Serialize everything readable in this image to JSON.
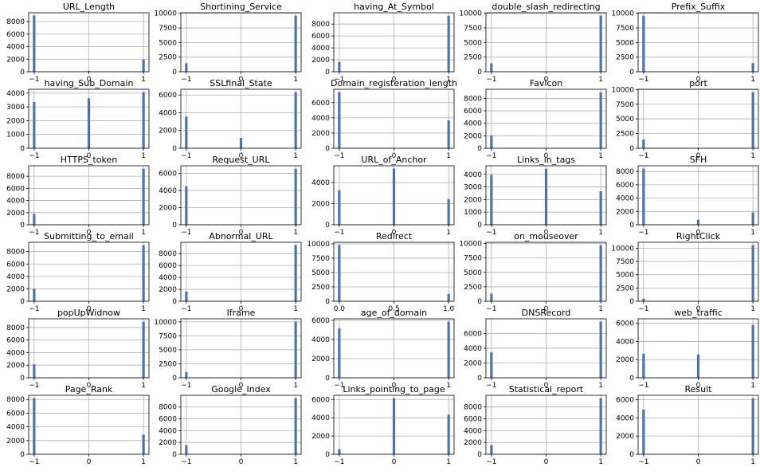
{
  "bar_color": "#4c72b0",
  "chart_data": [
    {
      "type": "bar",
      "title": "URL_Length",
      "x": [
        -1,
        0,
        1
      ],
      "values": [
        8960,
        135,
        1960
      ],
      "xlim": [
        -1.1,
        1.1
      ],
      "xticks": [
        -1,
        0,
        1
      ],
      "xtick_labels": [
        "−1",
        "0",
        "1"
      ],
      "ylim": [
        0,
        9400
      ],
      "yticks": [
        0,
        2000,
        4000,
        6000,
        8000
      ],
      "ytick_labels": [
        "0",
        "2000",
        "4000",
        "6000",
        "8000"
      ],
      "grid": true
    },
    {
      "type": "bar",
      "title": "Shortining_Service",
      "x": [
        -1,
        1
      ],
      "values": [
        1444,
        9611
      ],
      "xlim": [
        -1.1,
        1.1
      ],
      "xticks": [
        -1,
        0,
        1
      ],
      "xtick_labels": [
        "−1",
        "0",
        "1"
      ],
      "ylim": [
        0,
        10100
      ],
      "yticks": [
        0,
        2500,
        5000,
        7500,
        10000
      ],
      "ytick_labels": [
        "0",
        "2500",
        "5000",
        "7500",
        "10000"
      ],
      "grid": true
    },
    {
      "type": "bar",
      "title": "having_At_Symbol",
      "x": [
        -1,
        1
      ],
      "values": [
        1655,
        9400
      ],
      "xlim": [
        -1.1,
        1.1
      ],
      "xticks": [
        -1,
        0,
        1
      ],
      "xtick_labels": [
        "−1",
        "0",
        "1"
      ],
      "ylim": [
        0,
        9900
      ],
      "yticks": [
        0,
        2000,
        4000,
        6000,
        8000
      ],
      "ytick_labels": [
        "0",
        "2000",
        "4000",
        "6000",
        "8000"
      ],
      "grid": true
    },
    {
      "type": "bar",
      "title": "double_slash_redirecting",
      "x": [
        -1,
        1
      ],
      "values": [
        1429,
        9626
      ],
      "xlim": [
        -1.1,
        1.1
      ],
      "xticks": [
        -1,
        0,
        1
      ],
      "xtick_labels": [
        "−1",
        "0",
        "1"
      ],
      "ylim": [
        0,
        10100
      ],
      "yticks": [
        0,
        2500,
        5000,
        7500,
        10000
      ],
      "ytick_labels": [
        "0",
        "2500",
        "5000",
        "7500",
        "10000"
      ],
      "grid": true
    },
    {
      "type": "bar",
      "title": "Prefix_Suffix",
      "x": [
        -1,
        1
      ],
      "values": [
        9590,
        1465
      ],
      "xlim": [
        -1.1,
        1.1
      ],
      "xticks": [
        -1,
        0,
        1
      ],
      "xtick_labels": [
        "−1",
        "0",
        "1"
      ],
      "ylim": [
        0,
        10100
      ],
      "yticks": [
        0,
        2500,
        5000,
        7500,
        10000
      ],
      "ytick_labels": [
        "0",
        "2500",
        "5000",
        "7500",
        "10000"
      ],
      "grid": true
    },
    {
      "type": "bar",
      "title": "having_Sub_Domain",
      "x": [
        -1,
        0,
        1
      ],
      "values": [
        3363,
        3622,
        4070
      ],
      "xlim": [
        -1.1,
        1.1
      ],
      "xticks": [
        -1,
        0,
        1
      ],
      "xtick_labels": [
        "−1",
        "0",
        "1"
      ],
      "ylim": [
        0,
        4280
      ],
      "yticks": [
        0,
        1000,
        2000,
        3000,
        4000
      ],
      "ytick_labels": [
        "0",
        "1000",
        "2000",
        "3000",
        "4000"
      ],
      "grid": true
    },
    {
      "type": "bar",
      "title": "SSLfinal_State",
      "x": [
        -1,
        0,
        1
      ],
      "values": [
        3557,
        1167,
        6331
      ],
      "xlim": [
        -1.1,
        1.1
      ],
      "xticks": [
        -1,
        0,
        1
      ],
      "xtick_labels": [
        "−1",
        "0",
        "1"
      ],
      "ylim": [
        0,
        6650
      ],
      "yticks": [
        0,
        2000,
        4000,
        6000
      ],
      "ytick_labels": [
        "0",
        "2000",
        "4000",
        "6000"
      ],
      "grid": true
    },
    {
      "type": "bar",
      "title": "Domain_registeration_length",
      "x": [
        -1,
        1
      ],
      "values": [
        7389,
        3666
      ],
      "xlim": [
        -1.1,
        1.1
      ],
      "xticks": [
        -1,
        0,
        1
      ],
      "xtick_labels": [
        "−1",
        "0",
        "1"
      ],
      "ylim": [
        0,
        7760
      ],
      "yticks": [
        0,
        2000,
        4000,
        6000
      ],
      "ytick_labels": [
        "0",
        "2000",
        "4000",
        "6000"
      ],
      "grid": true
    },
    {
      "type": "bar",
      "title": "Favicon",
      "x": [
        -1,
        1
      ],
      "values": [
        2053,
        9002
      ],
      "xlim": [
        -1.1,
        1.1
      ],
      "xticks": [
        -1,
        0,
        1
      ],
      "xtick_labels": [
        "−1",
        "0",
        "1"
      ],
      "ylim": [
        0,
        9460
      ],
      "yticks": [
        0,
        2000,
        4000,
        6000,
        8000
      ],
      "ytick_labels": [
        "0",
        "2000",
        "4000",
        "6000",
        "8000"
      ],
      "grid": true
    },
    {
      "type": "bar",
      "title": "port",
      "x": [
        -1,
        1
      ],
      "values": [
        1502,
        9553
      ],
      "xlim": [
        -1.1,
        1.1
      ],
      "xticks": [
        -1,
        0,
        1
      ],
      "xtick_labels": [
        "−1",
        "0",
        "1"
      ],
      "ylim": [
        0,
        10050
      ],
      "yticks": [
        0,
        2500,
        5000,
        7500,
        10000
      ],
      "ytick_labels": [
        "0",
        "2500",
        "5000",
        "7500",
        "10000"
      ],
      "grid": true
    },
    {
      "type": "bar",
      "title": "HTTPS_token",
      "x": [
        -1,
        1
      ],
      "values": [
        1796,
        9259
      ],
      "xlim": [
        -1.1,
        1.1
      ],
      "xticks": [
        -1,
        0,
        1
      ],
      "xtick_labels": [
        "−1",
        "0",
        "1"
      ],
      "ylim": [
        0,
        9730
      ],
      "yticks": [
        0,
        2000,
        4000,
        6000,
        8000
      ],
      "ytick_labels": [
        "0",
        "2000",
        "4000",
        "6000",
        "8000"
      ],
      "grid": true
    },
    {
      "type": "bar",
      "title": "Request_URL",
      "x": [
        -1,
        1
      ],
      "values": [
        4495,
        6560
      ],
      "xlim": [
        -1.1,
        1.1
      ],
      "xticks": [
        -1,
        0,
        1
      ],
      "xtick_labels": [
        "−1",
        "0",
        "1"
      ],
      "ylim": [
        0,
        6890
      ],
      "yticks": [
        0,
        2000,
        4000,
        6000
      ],
      "ytick_labels": [
        "0",
        "2000",
        "4000",
        "6000"
      ],
      "grid": true
    },
    {
      "type": "bar",
      "title": "URL_of_Anchor",
      "x": [
        -1,
        0,
        1
      ],
      "values": [
        3282,
        5337,
        2436
      ],
      "xlim": [
        -1.1,
        1.1
      ],
      "xticks": [
        -1,
        0,
        1
      ],
      "xtick_labels": [
        "−1",
        "0",
        "1"
      ],
      "ylim": [
        0,
        5600
      ],
      "yticks": [
        0,
        2000,
        4000
      ],
      "ytick_labels": [
        "0",
        "2000",
        "4000"
      ],
      "grid": true
    },
    {
      "type": "bar",
      "title": "Links_in_tags",
      "x": [
        -1,
        0,
        1
      ],
      "values": [
        3956,
        4449,
        2650
      ],
      "xlim": [
        -1.1,
        1.1
      ],
      "xticks": [
        -1,
        0,
        1
      ],
      "xtick_labels": [
        "−1",
        "0",
        "1"
      ],
      "ylim": [
        0,
        4680
      ],
      "yticks": [
        0,
        1000,
        2000,
        3000,
        4000
      ],
      "ytick_labels": [
        "0",
        "1000",
        "2000",
        "3000",
        "4000"
      ],
      "grid": true
    },
    {
      "type": "bar",
      "title": "SFH",
      "x": [
        -1,
        0,
        1
      ],
      "values": [
        8440,
        761,
        1854
      ],
      "xlim": [
        -1.1,
        1.1
      ],
      "xticks": [
        -1,
        0,
        1
      ],
      "xtick_labels": [
        "−1",
        "0",
        "1"
      ],
      "ylim": [
        0,
        8860
      ],
      "yticks": [
        0,
        2000,
        4000,
        6000,
        8000
      ],
      "ytick_labels": [
        "0",
        "2000",
        "4000",
        "6000",
        "8000"
      ],
      "grid": true
    },
    {
      "type": "bar",
      "title": "Submitting_to_email",
      "x": [
        -1,
        1
      ],
      "values": [
        2014,
        9041
      ],
      "xlim": [
        -1.1,
        1.1
      ],
      "xticks": [
        -1,
        0,
        1
      ],
      "xtick_labels": [
        "−1",
        "0",
        "1"
      ],
      "ylim": [
        0,
        9500
      ],
      "yticks": [
        0,
        2000,
        4000,
        6000,
        8000
      ],
      "ytick_labels": [
        "0",
        "2000",
        "4000",
        "6000",
        "8000"
      ],
      "grid": true
    },
    {
      "type": "bar",
      "title": "Abnormal_URL",
      "x": [
        -1,
        1
      ],
      "values": [
        1629,
        9426
      ],
      "xlim": [
        -1.1,
        1.1
      ],
      "xticks": [
        -1,
        0,
        1
      ],
      "xtick_labels": [
        "−1",
        "0",
        "1"
      ],
      "ylim": [
        0,
        9900
      ],
      "yticks": [
        0,
        2000,
        4000,
        6000,
        8000
      ],
      "ytick_labels": [
        "0",
        "2000",
        "4000",
        "6000",
        "8000"
      ],
      "grid": true
    },
    {
      "type": "bar",
      "title": "Redirect",
      "x": [
        0,
        1
      ],
      "values": [
        9776,
        1279
      ],
      "xlim": [
        -0.05,
        1.05
      ],
      "xticks": [
        0,
        0.5,
        1
      ],
      "xtick_labels": [
        "0.0",
        "0.5",
        "1.0"
      ],
      "ylim": [
        0,
        10270
      ],
      "yticks": [
        0,
        2500,
        5000,
        7500,
        10000
      ],
      "ytick_labels": [
        "0",
        "2500",
        "5000",
        "7500",
        "10000"
      ],
      "grid": true
    },
    {
      "type": "bar",
      "title": "on_mouseover",
      "x": [
        -1,
        1
      ],
      "values": [
        1315,
        9740
      ],
      "xlim": [
        -1.1,
        1.1
      ],
      "xticks": [
        -1,
        0,
        1
      ],
      "xtick_labels": [
        "−1",
        "0",
        "1"
      ],
      "ylim": [
        0,
        10230
      ],
      "yticks": [
        0,
        2500,
        5000,
        7500,
        10000
      ],
      "ytick_labels": [
        "0",
        "2500",
        "5000",
        "7500",
        "10000"
      ],
      "grid": true
    },
    {
      "type": "bar",
      "title": "RightClick",
      "x": [
        -1,
        1
      ],
      "values": [
        476,
        10579
      ],
      "xlim": [
        -1.1,
        1.1
      ],
      "xticks": [
        -1,
        0,
        1
      ],
      "xtick_labels": [
        "−1",
        "0",
        "1"
      ],
      "ylim": [
        0,
        11110
      ],
      "yticks": [
        0,
        2500,
        5000,
        7500,
        10000
      ],
      "ytick_labels": [
        "0",
        "2500",
        "5000",
        "7500",
        "10000"
      ],
      "grid": true
    },
    {
      "type": "bar",
      "title": "popUpWidnow",
      "x": [
        -1,
        1
      ],
      "values": [
        2137,
        8918
      ],
      "xlim": [
        -1.1,
        1.1
      ],
      "xticks": [
        -1,
        0,
        1
      ],
      "xtick_labels": [
        "−1",
        "0",
        "1"
      ],
      "ylim": [
        0,
        9370
      ],
      "yticks": [
        0,
        2000,
        4000,
        6000,
        8000
      ],
      "ytick_labels": [
        "0",
        "2000",
        "4000",
        "6000",
        "8000"
      ],
      "grid": true
    },
    {
      "type": "bar",
      "title": "Iframe",
      "x": [
        -1,
        1
      ],
      "values": [
        1012,
        10043
      ],
      "xlim": [
        -1.1,
        1.1
      ],
      "xticks": [
        -1,
        0,
        1
      ],
      "xtick_labels": [
        "−1",
        "0",
        "1"
      ],
      "ylim": [
        0,
        10550
      ],
      "yticks": [
        0,
        2500,
        5000,
        7500,
        10000
      ],
      "ytick_labels": [
        "0",
        "2500",
        "5000",
        "7500",
        "10000"
      ],
      "grid": true
    },
    {
      "type": "bar",
      "title": "age_of_domain",
      "x": [
        -1,
        1
      ],
      "values": [
        5189,
        5866
      ],
      "xlim": [
        -1.1,
        1.1
      ],
      "xticks": [
        -1,
        0,
        1
      ],
      "xtick_labels": [
        "−1",
        "0",
        "1"
      ],
      "ylim": [
        0,
        6160
      ],
      "yticks": [
        0,
        2000,
        4000,
        6000
      ],
      "ytick_labels": [
        "0",
        "2000",
        "4000",
        "6000"
      ],
      "grid": true
    },
    {
      "type": "bar",
      "title": "DNSRecord",
      "x": [
        -1,
        1
      ],
      "values": [
        3443,
        7612
      ],
      "xlim": [
        -1.1,
        1.1
      ],
      "xticks": [
        -1,
        0,
        1
      ],
      "xtick_labels": [
        "−1",
        "0",
        "1"
      ],
      "ylim": [
        0,
        7990
      ],
      "yticks": [
        0,
        2000,
        4000,
        6000
      ],
      "ytick_labels": [
        "0",
        "2000",
        "4000",
        "6000"
      ],
      "grid": true
    },
    {
      "type": "bar",
      "title": "web_traffic",
      "x": [
        -1,
        0,
        1
      ],
      "values": [
        2655,
        2569,
        5831
      ],
      "xlim": [
        -1.1,
        1.1
      ],
      "xticks": [
        -1,
        0,
        1
      ],
      "xtick_labels": [
        "−1",
        "0",
        "1"
      ],
      "ylim": [
        0,
        6500
      ],
      "yticks": [
        0,
        2000,
        4000,
        6000
      ],
      "ytick_labels": [
        "0",
        "2000",
        "4000",
        "6000"
      ],
      "grid": true
    },
    {
      "type": "bar",
      "title": "Page_Rank",
      "x": [
        -1,
        1
      ],
      "values": [
        8201,
        2854
      ],
      "xlim": [
        -1.1,
        1.1
      ],
      "xticks": [
        -1,
        0,
        1
      ],
      "xtick_labels": [
        "−1",
        "0",
        "1"
      ],
      "ylim": [
        0,
        8610
      ],
      "yticks": [
        0,
        2000,
        4000,
        6000,
        8000
      ],
      "ytick_labels": [
        "0",
        "2000",
        "4000",
        "6000",
        "8000"
      ],
      "grid": true
    },
    {
      "type": "bar",
      "title": "Google_Index",
      "x": [
        -1,
        1
      ],
      "values": [
        1539,
        9516
      ],
      "xlim": [
        -1.1,
        1.1
      ],
      "xticks": [
        -1,
        0,
        1
      ],
      "xtick_labels": [
        "−1",
        "0",
        "1"
      ],
      "ylim": [
        0,
        9990
      ],
      "yticks": [
        0,
        2000,
        4000,
        6000,
        8000
      ],
      "ytick_labels": [
        "0",
        "2000",
        "4000",
        "6000",
        "8000"
      ],
      "grid": true
    },
    {
      "type": "bar",
      "title": "Links_pointing_to_page",
      "x": [
        -1,
        0,
        1
      ],
      "values": [
        548,
        6156,
        4351
      ],
      "xlim": [
        -1.1,
        1.1
      ],
      "xticks": [
        -1,
        0,
        1
      ],
      "xtick_labels": [
        "−1",
        "0",
        "1"
      ],
      "ylim": [
        0,
        6460
      ],
      "yticks": [
        0,
        2000,
        4000,
        6000
      ],
      "ytick_labels": [
        "0",
        "2000",
        "4000",
        "6000"
      ],
      "grid": true
    },
    {
      "type": "bar",
      "title": "Statistical_report",
      "x": [
        -1,
        1
      ],
      "values": [
        1550,
        9505
      ],
      "xlim": [
        -1.1,
        1.1
      ],
      "xticks": [
        -1,
        0,
        1
      ],
      "xtick_labels": [
        "−1",
        "0",
        "1"
      ],
      "ylim": [
        0,
        9980
      ],
      "yticks": [
        0,
        2000,
        4000,
        6000,
        8000
      ],
      "ytick_labels": [
        "0",
        "2000",
        "4000",
        "6000",
        "8000"
      ],
      "grid": true
    },
    {
      "type": "bar",
      "title": "Result",
      "x": [
        -1,
        1
      ],
      "values": [
        4898,
        6157
      ],
      "xlim": [
        -1.1,
        1.1
      ],
      "xticks": [
        -1,
        0,
        1
      ],
      "xtick_labels": [
        "−1",
        "0",
        "1"
      ],
      "ylim": [
        0,
        6470
      ],
      "yticks": [
        0,
        2000,
        4000,
        6000
      ],
      "ytick_labels": [
        "0",
        "2000",
        "4000",
        "6000"
      ],
      "grid": true
    }
  ]
}
